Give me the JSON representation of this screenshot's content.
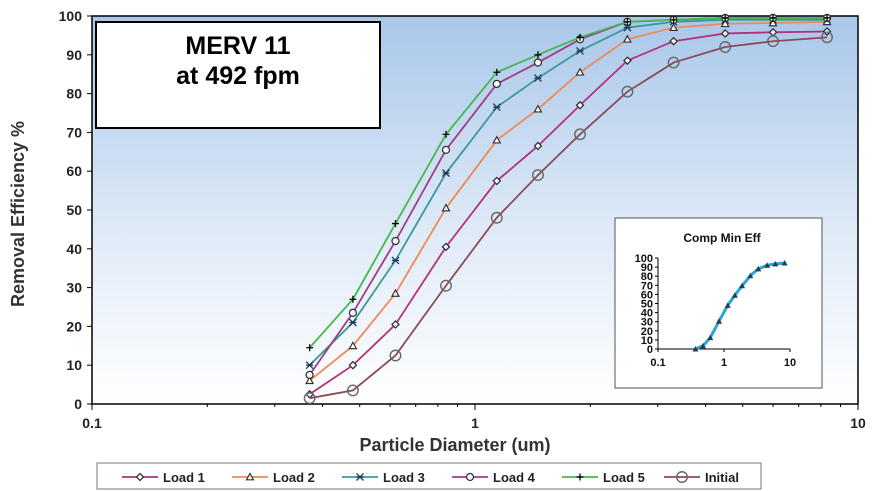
{
  "chart_data": {
    "type": "line",
    "title": "",
    "xlabel": "Particle Diameter (um)",
    "ylabel": "Removal Efficiency %",
    "xscale": "log",
    "xlim": [
      0.1,
      10
    ],
    "ylim": [
      0,
      100
    ],
    "xticks": [
      "0.1",
      "1",
      "10"
    ],
    "yticks": [
      "0",
      "10",
      "20",
      "30",
      "40",
      "50",
      "60",
      "70",
      "80",
      "90",
      "100"
    ],
    "grid": false,
    "legend_position": "bottom",
    "annotation_lines": [
      "MERV 11",
      "at 492 fpm"
    ],
    "x": [
      0.37,
      0.48,
      0.62,
      0.84,
      1.14,
      1.46,
      1.88,
      2.5,
      3.3,
      4.5,
      6.0,
      8.3
    ],
    "series": [
      {
        "name": "Load 1",
        "color": "#b3337a",
        "marker": "diamond",
        "values": [
          2.5,
          10,
          20.5,
          40.5,
          57.5,
          66.5,
          77,
          88.5,
          93.5,
          95.5,
          95.8,
          96
        ]
      },
      {
        "name": "Load 2",
        "color": "#ee8a55",
        "marker": "triangle",
        "values": [
          6,
          15,
          28.5,
          50.5,
          68,
          76,
          85.5,
          94,
          97,
          98,
          98.2,
          98.5
        ]
      },
      {
        "name": "Load 3",
        "color": "#3a9a9a",
        "marker": "asterisk",
        "values": [
          10,
          21,
          37,
          59.5,
          76.5,
          84,
          91,
          97,
          98.5,
          99,
          99,
          99
        ]
      },
      {
        "name": "Load 4",
        "color": "#9c3d8a",
        "marker": "circle",
        "values": [
          7.5,
          23.5,
          42,
          65.5,
          82.5,
          88,
          94,
          98.5,
          99,
          99.5,
          99.5,
          99.5
        ]
      },
      {
        "name": "Load 5",
        "color": "#44b84e",
        "marker": "plus",
        "values": [
          14.5,
          27,
          46.5,
          69.5,
          85.5,
          90,
          94.5,
          98.5,
          99,
          99.5,
          99.5,
          99.5
        ]
      },
      {
        "name": "Initial",
        "color": "#8b4a55",
        "marker": "open-circle",
        "values": [
          1.5,
          3.5,
          12.5,
          30.5,
          48,
          59,
          69.5,
          80.5,
          88,
          92,
          93.5,
          94.5
        ]
      }
    ],
    "inset": {
      "type": "line",
      "title": "Comp Min Eff",
      "xscale": "log",
      "xlim": [
        0.1,
        10
      ],
      "ylim": [
        0,
        100
      ],
      "xticks": [
        "0.1",
        "1",
        "10"
      ],
      "yticks": [
        "0",
        "10",
        "20",
        "30",
        "40",
        "50",
        "60",
        "70",
        "80",
        "90",
        "100"
      ],
      "line_color": "#2aa5d8",
      "marker_color": "#1f3f5a",
      "x": [
        0.37,
        0.48,
        0.62,
        0.84,
        1.14,
        1.46,
        1.88,
        2.5,
        3.3,
        4.5,
        6.0,
        8.3
      ],
      "values": [
        0,
        3.5,
        12.5,
        30.5,
        48,
        59,
        69.5,
        80.5,
        88,
        92,
        93.5,
        94.5
      ]
    }
  }
}
